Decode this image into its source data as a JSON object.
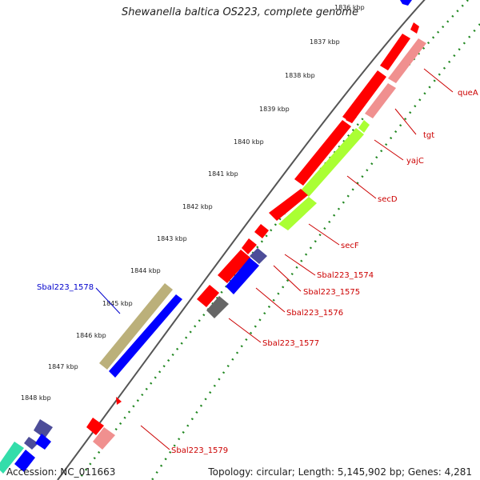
{
  "title": "Shewanella baltica OS223, complete genome",
  "footer": {
    "accession": "Accession: NC_011663",
    "topology": "Topology: circular; Length: 5,145,902 bp; Genes: 4,281"
  },
  "colors": {
    "red": "#ff0000",
    "pink": "#f0908f",
    "lime": "#aaff33",
    "blue": "#0000ff",
    "olive": "#bbb07a",
    "navy": "#4d4d99",
    "gray": "#666666",
    "teal": "#33ddaa",
    "label_red": "#cc0000",
    "label_blue": "#0000cc",
    "tick_green": "#228822"
  },
  "ticks": [
    "1836 kbp",
    "1837 kbp",
    "1838 kbp",
    "1839 kbp",
    "1840 kbp",
    "1841 kbp",
    "1842 kbp",
    "1843 kbp",
    "1844 kbp",
    "1845 kbp",
    "1846 kbp",
    "1847 kbp",
    "1848 kbp"
  ],
  "gene_labels": [
    {
      "text": "queA",
      "color": "red"
    },
    {
      "text": "tgt",
      "color": "red"
    },
    {
      "text": "yajC",
      "color": "red"
    },
    {
      "text": "secD",
      "color": "red"
    },
    {
      "text": "secF",
      "color": "red"
    },
    {
      "text": "Sbal223_1574",
      "color": "red"
    },
    {
      "text": "Sbal223_1575",
      "color": "red"
    },
    {
      "text": "Sbal223_1576",
      "color": "red"
    },
    {
      "text": "Sbal223_1577",
      "color": "red"
    },
    {
      "text": "Sbal223_1578",
      "color": "blue"
    },
    {
      "text": "Sbal223_1579",
      "color": "red"
    }
  ]
}
